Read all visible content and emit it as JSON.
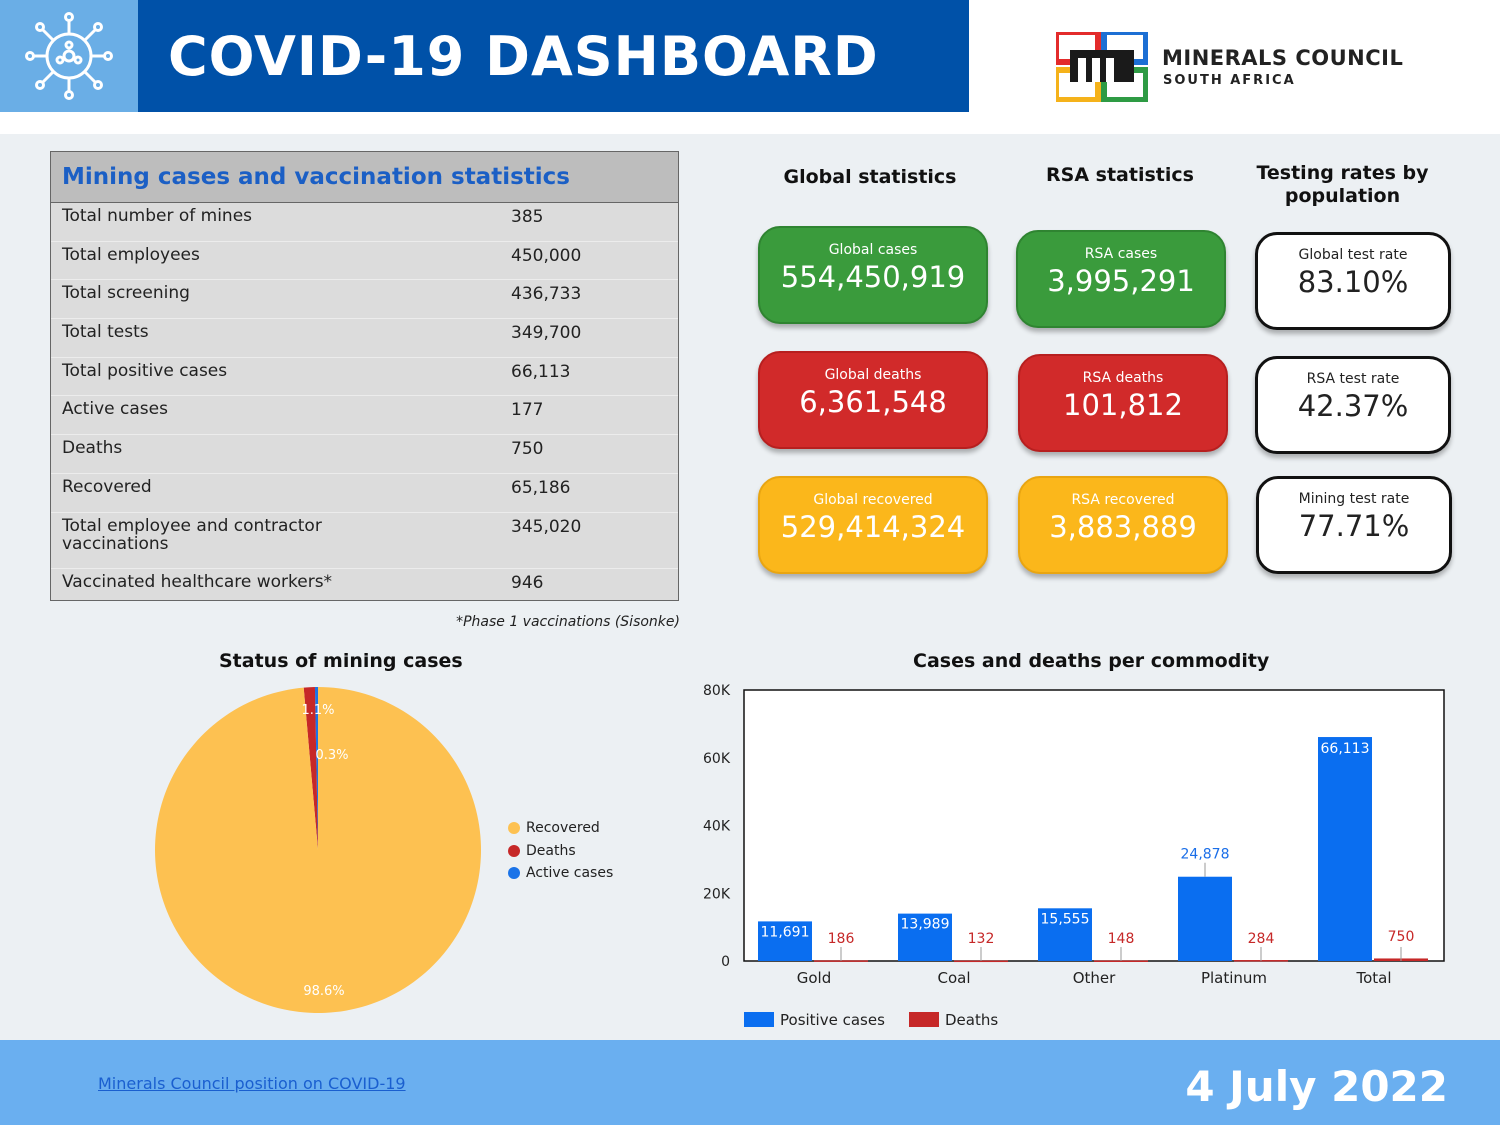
{
  "header": {
    "title": "COVID-19 DASHBOARD",
    "logo_line1": "MINERALS COUNCIL",
    "logo_line2": "SOUTH AFRICA"
  },
  "table": {
    "title": "Mining cases and vaccination statistics",
    "rows": [
      {
        "label": "Total number of mines",
        "value": "385"
      },
      {
        "label": "Total employees",
        "value": "450,000"
      },
      {
        "label": "Total screening",
        "value": "436,733"
      },
      {
        "label": "Total tests",
        "value": "349,700"
      },
      {
        "label": "Total positive cases",
        "value": "66,113"
      },
      {
        "label": "Active cases",
        "value": "177"
      },
      {
        "label": "Deaths",
        "value": "750"
      },
      {
        "label": "Recovered",
        "value": "65,186"
      },
      {
        "label": "Total employee and contractor vaccinations",
        "value": "345,020"
      },
      {
        "label": "Vaccinated healthcare workers*",
        "value": "946"
      }
    ],
    "note": "*Phase 1 vaccinations (Sisonke)"
  },
  "stats": {
    "global_title": "Global statistics",
    "rsa_title": "RSA statistics",
    "testing_title": "Testing rates by population",
    "global_cases_label": "Global cases",
    "global_cases_value": "554,450,919",
    "global_deaths_label": "Global deaths",
    "global_deaths_value": "6,361,548",
    "global_recovered_label": "Global recovered",
    "global_recovered_value": "529,414,324",
    "rsa_cases_label": "RSA cases",
    "rsa_cases_value": "3,995,291",
    "rsa_deaths_label": "RSA deaths",
    "rsa_deaths_value": "101,812",
    "rsa_recovered_label": "RSA recovered",
    "rsa_recovered_value": "3,883,889",
    "global_test_label": "Global test rate",
    "global_test_value": "83.10%",
    "rsa_test_label": "RSA test rate",
    "rsa_test_value": "42.37%",
    "mining_test_label": "Mining test rate",
    "mining_test_value": "77.71%"
  },
  "pie": {
    "title": "Status of mining cases",
    "slices": [
      {
        "name": "Recovered",
        "percent": 98.6,
        "label": "98.6%",
        "color": "#fdc151"
      },
      {
        "name": "Deaths",
        "percent": 1.1,
        "label": "1.1%",
        "color": "#c62828"
      },
      {
        "name": "Active cases",
        "percent": 0.3,
        "label": "0.3%",
        "color": "#1a73e8"
      }
    ]
  },
  "chart_data": {
    "type": "bar",
    "title": "Cases and deaths per commodity",
    "categories": [
      "Gold",
      "Coal",
      "Other",
      "Platinum",
      "Total"
    ],
    "series": [
      {
        "name": "Positive cases",
        "color": "#0a6ef0",
        "values": [
          11691,
          13989,
          15555,
          24878,
          66113
        ],
        "labels": [
          "11,691",
          "13,989",
          "15,555",
          "24,878",
          "66,113"
        ]
      },
      {
        "name": "Deaths",
        "color": "#c62828",
        "values": [
          186,
          132,
          148,
          284,
          750
        ],
        "labels": [
          "186",
          "132",
          "148",
          "284",
          "750"
        ]
      }
    ],
    "ylim": [
      0,
      80000
    ],
    "yticks": [
      0,
      20000,
      40000,
      60000,
      80000
    ],
    "ytick_labels": [
      "0",
      "20K",
      "40K",
      "60K",
      "80K"
    ],
    "xlabel": "",
    "ylabel": ""
  },
  "footer": {
    "link": "Minerals Council position on COVID-19",
    "date": "4 July 2022"
  }
}
